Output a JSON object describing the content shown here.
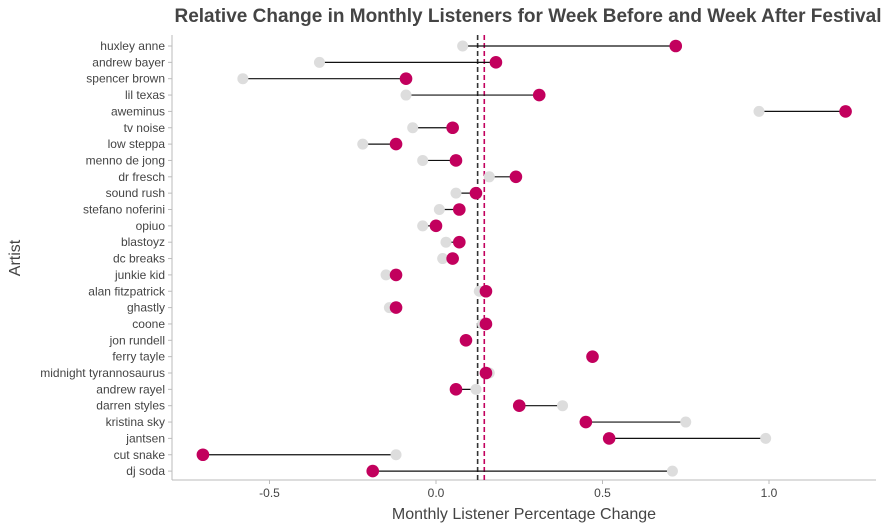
{
  "chart_data": {
    "type": "dumbbell",
    "title": "Relative Change in Monthly Listeners for Week Before and Week After Festival",
    "xlabel": "Monthly Listener Percentage Change",
    "ylabel": "Artist",
    "xlim": [
      -0.8,
      1.35
    ],
    "xticks": [
      -0.5,
      0.0,
      0.5,
      1.0
    ],
    "xtick_labels": [
      "-0.5",
      "0.0",
      "0.5",
      "1.0"
    ],
    "grid": false,
    "colors": {
      "before": "#dddddd",
      "after": "#c2005d",
      "connector": "#111111",
      "ref_dark": "#333333",
      "ref_accent": "#c2005d"
    },
    "reference_lines": [
      {
        "x": 0.125,
        "color": "#333333",
        "style": "dashed"
      },
      {
        "x": 0.145,
        "color": "#c2005d",
        "style": "dashed"
      }
    ],
    "artists": [
      "huxley anne",
      "andrew bayer",
      "spencer brown",
      "lil texas",
      "aweminus",
      "tv noise",
      "low steppa",
      "menno de jong",
      "dr fresch",
      "sound rush",
      "stefano noferini",
      "opiuo",
      "blastoyz",
      "dc breaks",
      "junkie kid",
      "alan fitzpatrick",
      "ghastly",
      "coone",
      "jon rundell",
      "ferry tayle",
      "midnight tyrannosaurus",
      "andrew rayel",
      "darren styles",
      "kristina sky",
      "jantsen",
      "cut snake",
      "dj soda"
    ],
    "series": [
      {
        "key": "before",
        "values": [
          0.08,
          -0.35,
          -0.58,
          -0.09,
          0.97,
          -0.07,
          -0.22,
          -0.04,
          0.16,
          0.06,
          0.01,
          -0.04,
          0.03,
          0.02,
          -0.15,
          0.13,
          -0.14,
          0.14,
          0.09,
          0.47,
          0.16,
          0.12,
          0.38,
          0.75,
          0.99,
          -0.12,
          0.71
        ]
      },
      {
        "key": "after",
        "values": [
          0.72,
          0.18,
          -0.09,
          0.31,
          1.23,
          0.05,
          -0.12,
          0.06,
          0.24,
          0.12,
          0.07,
          0.0,
          0.07,
          0.05,
          -0.12,
          0.15,
          -0.12,
          0.15,
          0.09,
          0.47,
          0.15,
          0.06,
          0.25,
          0.45,
          0.52,
          -0.7,
          -0.19
        ]
      }
    ]
  }
}
